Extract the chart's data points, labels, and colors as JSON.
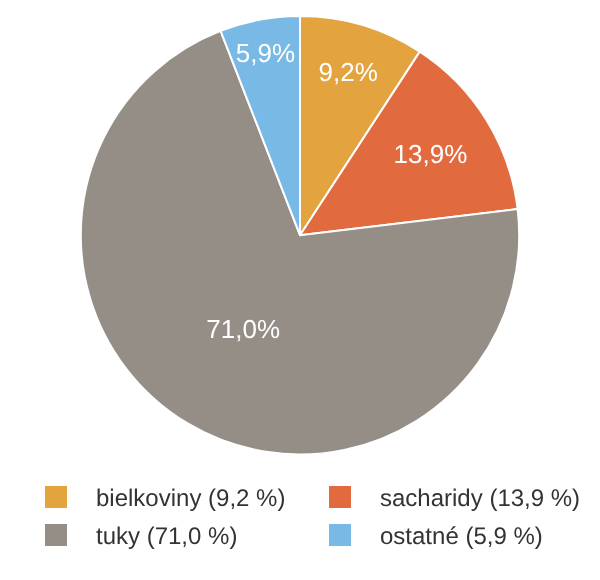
{
  "chart_data": {
    "type": "pie",
    "categories": [
      "bielkoviny (9,2 %)",
      "sacharidy (13,9 %)",
      "tuky (71,0 %)",
      "ostatné (5,9 %)"
    ],
    "values": [
      9.2,
      13.9,
      71.0,
      5.9
    ],
    "colors": [
      "#e3a43f",
      "#e26a3f",
      "#958e86",
      "#78b9e6"
    ],
    "value_labels": [
      "9,2%",
      "13,9%",
      "71,0%",
      "5,9%"
    ],
    "legend": "bottom"
  }
}
